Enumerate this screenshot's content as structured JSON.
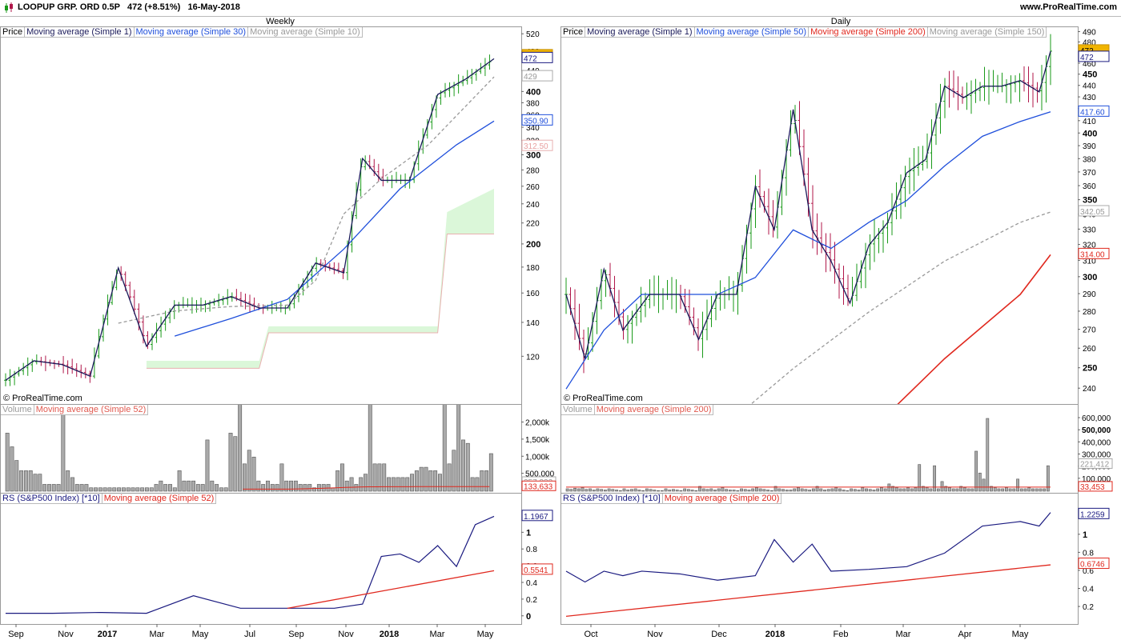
{
  "header": {
    "ticker": "LOOPUP GRP. ORD 0.5P",
    "price": "472 (+8.51%)",
    "date": "16-May-2018",
    "url": "www.ProRealTime.com"
  },
  "copyright": "© ProRealTime.com",
  "colors": {
    "price": "#1a1a5a",
    "up": "#1a9a1a",
    "down": "#b0174a",
    "ma_blue": "#1f4fdb",
    "ma_gray": "#999999",
    "ma_red": "#e0281e",
    "rs": "#1a1a80",
    "cloud_fill": "#dbf7d9",
    "cloud_edge": "#e8b0b0",
    "volume": "#999999"
  },
  "panels": [
    {
      "id": "weekly",
      "title": "Weekly",
      "price_legend": [
        "Price",
        "Moving average (Simple 1)",
        "Moving average (Simple 30)",
        "Moving average (Simple 10)"
      ],
      "volume_legend": [
        "Volume",
        "Moving average (Simple 52)"
      ],
      "rs_legend": [
        "RS (S&P500 Index) [*10]",
        "Moving average (Simple 52)"
      ],
      "x_labels": [
        "Sep",
        "Nov",
        "2017",
        "Mar",
        "May",
        "Jul",
        "Sep",
        "Nov",
        "2018",
        "Mar",
        "May"
      ],
      "price_ticks": [
        "520",
        "480",
        "440",
        "400",
        "380",
        "360",
        "340",
        "320",
        "300",
        "280",
        "260",
        "240",
        "220",
        "200",
        "180",
        "160",
        "140",
        "120"
      ],
      "price_badges": [
        {
          "text": "472",
          "v": 472,
          "style": "gold"
        },
        {
          "text": "472",
          "v": 466,
          "style": "navy"
        },
        {
          "text": "429",
          "v": 429,
          "style": "gray"
        },
        {
          "text": "350.90",
          "v": 350.9,
          "style": "blue"
        },
        {
          "text": "312.50",
          "v": 312.5,
          "style": "pink"
        }
      ],
      "volume_ticks": [
        "2,000k",
        "1,500k",
        "1,000k",
        "500,000"
      ],
      "volume_badges": [
        {
          "text": "257,333",
          "v": 257333,
          "style": "gray"
        },
        {
          "text": "133,633",
          "v": 133633,
          "style": "red"
        }
      ],
      "rs_ticks": [
        "1",
        "0.8",
        "0.6",
        "0.4",
        "0.2",
        "0"
      ],
      "rs_badges": [
        {
          "text": "1.1967",
          "v": 1.1967,
          "style": "navy"
        },
        {
          "text": "0.5541",
          "v": 0.5541,
          "style": "red"
        }
      ]
    },
    {
      "id": "daily",
      "title": "Daily",
      "price_legend": [
        "Price",
        "Moving average (Simple 1)",
        "Moving average (Simple 50)",
        "Moving average (Simple 200)",
        "Moving average (Simple 150)"
      ],
      "volume_legend": [
        "Volume",
        "Moving average (Simple 200)"
      ],
      "rs_legend": [
        "RS (S&P500 Index) [*10]",
        "Moving average (Simple 200)"
      ],
      "x_labels": [
        "Oct",
        "Nov",
        "Dec",
        "2018",
        "Feb",
        "Mar",
        "Apr",
        "May"
      ],
      "price_ticks": [
        "490",
        "480",
        "460",
        "450",
        "440",
        "430",
        "420",
        "410",
        "400",
        "390",
        "380",
        "370",
        "360",
        "350",
        "340",
        "330",
        "320",
        "310",
        "300",
        "290",
        "280",
        "270",
        "260",
        "250",
        "240"
      ],
      "price_badges": [
        {
          "text": "472",
          "v": 472,
          "style": "gold"
        },
        {
          "text": "472",
          "v": 466,
          "style": "navy"
        },
        {
          "text": "417.60",
          "v": 417.6,
          "style": "blue"
        },
        {
          "text": "342.05",
          "v": 342.05,
          "style": "gray"
        },
        {
          "text": "314.00",
          "v": 314,
          "style": "red"
        }
      ],
      "volume_ticks": [
        "600,000",
        "500,000",
        "400,000",
        "300,000",
        "200,000",
        "100,000"
      ],
      "volume_badges": [
        {
          "text": "221,412",
          "v": 221412,
          "style": "gray"
        },
        {
          "text": "33,453",
          "v": 33453,
          "style": "red"
        }
      ],
      "rs_ticks": [
        "1",
        "0.8",
        "0.6",
        "0.4",
        "0.2"
      ],
      "rs_badges": [
        {
          "text": "1.2259",
          "v": 1.2259,
          "style": "navy"
        },
        {
          "text": "0.6746",
          "v": 0.6746,
          "style": "red"
        }
      ]
    }
  ],
  "chart_data": [
    {
      "type": "line",
      "panel": "weekly",
      "price": {
        "x": [
          0,
          6,
          12,
          18,
          24,
          30,
          36,
          42,
          48,
          54,
          60,
          66,
          72,
          76,
          80,
          86,
          92,
          98,
          104
        ],
        "values": [
          108,
          118,
          116,
          110,
          180,
          126,
          152,
          152,
          158,
          150,
          150,
          184,
          176,
          296,
          268,
          268,
          396,
          425,
          466
        ],
        "ma30": {
          "x": [
            36,
            48,
            60,
            72,
            84,
            96,
            104
          ],
          "values": [
            132,
            143,
            156,
            196,
            258,
            315,
            351
          ]
        },
        "ma10": {
          "x": [
            24,
            36,
            48,
            60,
            66,
            72,
            80,
            90,
            104
          ],
          "values": [
            140,
            148,
            151,
            152,
            170,
            230,
            270,
            315,
            429
          ]
        },
        "cloud": {
          "x": [
            30,
            54,
            56,
            92,
            94,
            104
          ],
          "upper": [
            118,
            118,
            138,
            138,
            232,
            258
          ],
          "lower": [
            114,
            114,
            134,
            134,
            210,
            210
          ]
        },
        "range": [
          98,
          530
        ],
        "scale": "log"
      },
      "volume": {
        "values": [
          170,
          130,
          90,
          60,
          60,
          60,
          50,
          50,
          20,
          20,
          20,
          20,
          300,
          60,
          40,
          20,
          20,
          20,
          10,
          10,
          10,
          10,
          10,
          10,
          10,
          10,
          10,
          10,
          10,
          10,
          10,
          10,
          20,
          30,
          20,
          20,
          10,
          60,
          30,
          30,
          30,
          20,
          20,
          150,
          30,
          20,
          10,
          10,
          170,
          160,
          310,
          80,
          120,
          100,
          30,
          20,
          30,
          20,
          20,
          80,
          30,
          30,
          30,
          20,
          20,
          20,
          10,
          20,
          20,
          20,
          10,
          60,
          80,
          30,
          40,
          20,
          40,
          50,
          450,
          80,
          80,
          80,
          40,
          40,
          40,
          40,
          40,
          50,
          60,
          70,
          70,
          60,
          60,
          50,
          470,
          80,
          120,
          420,
          150,
          140,
          40,
          40,
          60,
          60,
          110
        ],
        "ma": [
          0,
          0,
          0,
          0,
          0,
          0,
          0,
          0,
          0,
          0,
          0,
          0,
          0,
          0,
          0,
          0,
          0,
          0,
          0,
          0,
          0,
          0,
          0,
          0,
          0,
          0,
          0,
          0,
          0,
          0,
          0,
          0,
          0,
          0,
          0,
          0,
          0,
          0,
          0,
          0,
          0,
          0,
          0,
          0,
          0,
          0,
          0,
          0,
          0,
          0,
          0,
          60,
          60,
          60,
          60,
          60,
          60,
          60,
          60,
          60,
          60,
          62,
          64,
          66,
          70,
          74,
          78,
          82,
          86,
          90,
          95,
          100,
          104,
          110,
          114,
          118,
          122,
          126,
          128,
          130,
          130,
          132,
          132,
          132,
          132,
          133,
          133,
          133,
          134,
          134,
          134,
          134,
          134,
          134,
          134,
          134,
          134,
          134,
          134,
          134,
          134,
          134,
          134,
          134,
          134
        ],
        "max": 2200000,
        "unit_k": true
      },
      "rs": {
        "x": [
          0,
          10,
          20,
          30,
          40,
          50,
          60,
          66,
          70,
          76,
          80,
          84,
          88,
          92,
          96,
          100,
          104
        ],
        "values": [
          0.04,
          0.04,
          0.05,
          0.04,
          0.25,
          0.1,
          0.1,
          0.1,
          0.1,
          0.15,
          0.72,
          0.75,
          0.65,
          0.85,
          0.6,
          1.1,
          1.2
        ],
        "ma_x": [
          60,
          104
        ],
        "ma_values": [
          0.1,
          0.55
        ],
        "range": [
          -0.05,
          1.3
        ]
      }
    },
    {
      "type": "line",
      "panel": "daily",
      "price": {
        "x": [
          0,
          5,
          10,
          15,
          22,
          30,
          35,
          40,
          45,
          50,
          55,
          60,
          65,
          70,
          75,
          80,
          85,
          90,
          95,
          100,
          105,
          110,
          115,
          120,
          125,
          128
        ],
        "values": [
          290,
          255,
          305,
          270,
          290,
          290,
          265,
          290,
          290,
          360,
          330,
          420,
          330,
          310,
          285,
          320,
          335,
          370,
          380,
          440,
          430,
          440,
          440,
          445,
          435,
          472
        ],
        "ma50": {
          "x": [
            0,
            10,
            20,
            30,
            40,
            50,
            60,
            70,
            80,
            90,
            100,
            110,
            120,
            128
          ],
          "values": [
            240,
            270,
            290,
            290,
            290,
            300,
            330,
            318,
            335,
            350,
            375,
            398,
            410,
            418
          ]
        },
        "ma150": {
          "x": [
            20,
            40,
            60,
            80,
            100,
            120,
            128
          ],
          "values": [
            200,
            220,
            250,
            280,
            310,
            335,
            342
          ]
        },
        "ma200": {
          "x": [
            40,
            60,
            80,
            100,
            120,
            128
          ],
          "values": [
            160,
            190,
            220,
            255,
            290,
            314
          ]
        },
        "range": [
          234,
          492
        ],
        "scale": "log"
      },
      "volume": {
        "values": [
          20,
          15,
          25,
          20,
          30,
          15,
          20,
          10,
          20,
          15,
          10,
          20,
          15,
          10,
          5,
          20,
          10,
          15,
          20,
          10,
          5,
          20,
          15,
          10,
          5,
          5,
          20,
          10,
          15,
          10,
          5,
          20,
          15,
          10,
          5,
          40,
          20,
          15,
          20,
          10,
          20,
          30,
          15,
          10,
          10,
          5,
          20,
          15,
          10,
          20,
          30,
          20,
          15,
          10,
          5,
          40,
          20,
          15,
          10,
          10,
          20,
          30,
          20,
          15,
          10,
          20,
          40,
          20,
          10,
          15,
          20,
          30,
          20,
          10,
          5,
          20,
          15,
          10,
          30,
          20,
          15,
          10,
          20,
          30,
          20,
          60,
          40,
          30,
          20,
          20,
          30,
          20,
          30,
          220,
          40,
          30,
          20,
          210,
          20,
          80,
          40,
          30,
          20,
          20,
          40,
          30,
          20,
          20,
          330,
          150,
          100,
          600,
          40,
          30,
          20,
          20,
          30,
          20,
          20,
          100,
          20,
          20,
          30,
          20,
          20,
          20,
          20,
          210
        ],
        "ma": 34000,
        "max": 620000
      },
      "rs": {
        "x": [
          0,
          5,
          10,
          15,
          20,
          30,
          40,
          50,
          55,
          60,
          65,
          70,
          80,
          90,
          100,
          110,
          120,
          125,
          128
        ],
        "values": [
          0.6,
          0.48,
          0.6,
          0.55,
          0.6,
          0.57,
          0.5,
          0.55,
          0.95,
          0.7,
          0.9,
          0.6,
          0.62,
          0.65,
          0.8,
          1.1,
          1.15,
          1.1,
          1.25
        ],
        "ma": [
          0.1,
          0.67
        ],
        "range": [
          0.05,
          1.3
        ]
      }
    }
  ]
}
